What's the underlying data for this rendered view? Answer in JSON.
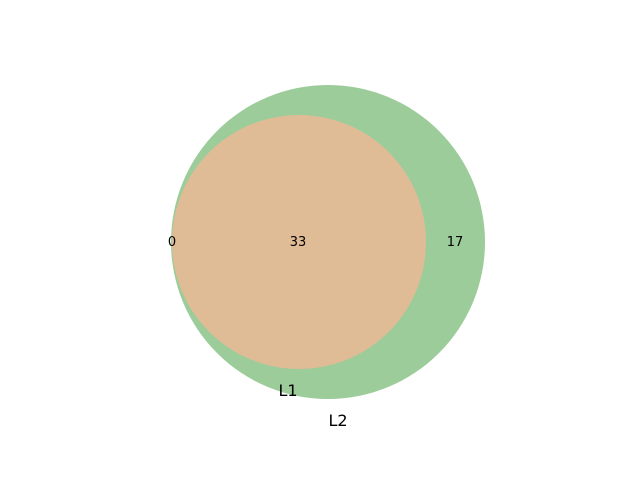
{
  "diagram": {
    "type": "venn2",
    "sets": [
      {
        "name": "L1",
        "color": "#e0bc96"
      },
      {
        "name": "L2",
        "color": "#9bcc99"
      }
    ],
    "regions": {
      "only_L1": "0",
      "both": "33",
      "only_L2": "17"
    }
  }
}
